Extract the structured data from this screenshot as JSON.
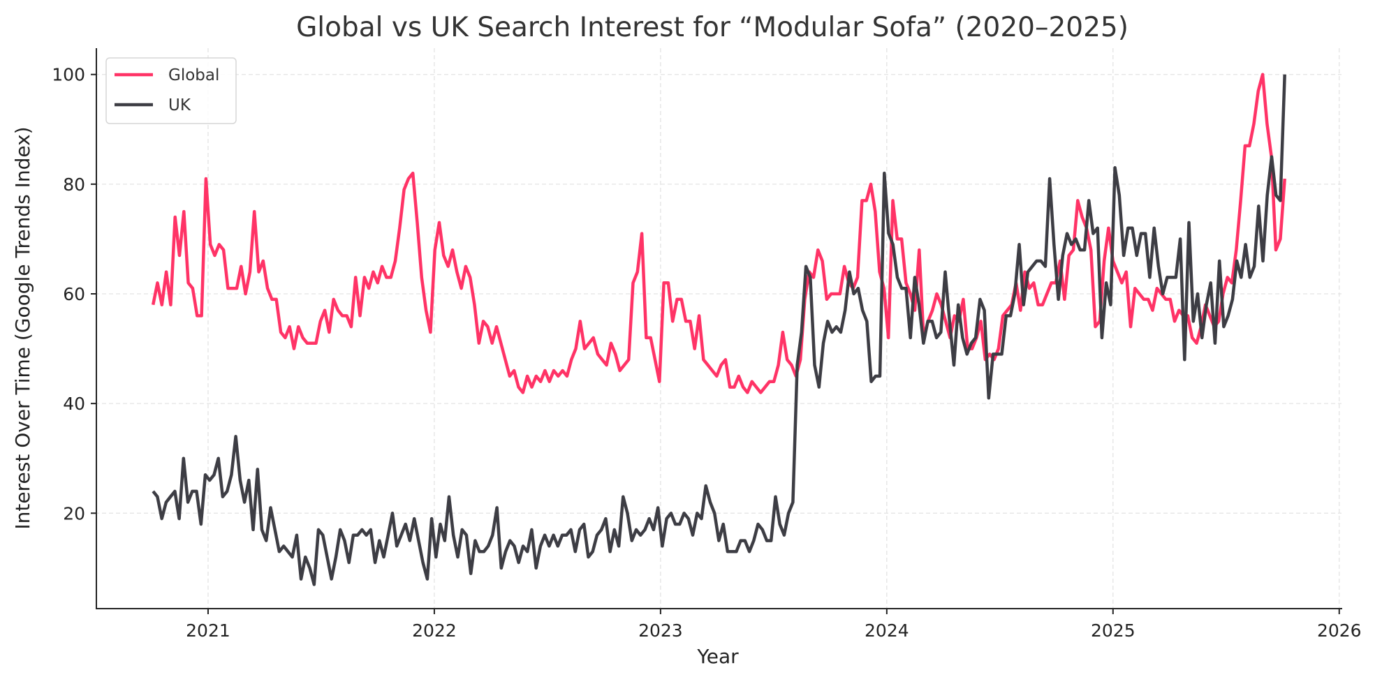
{
  "chart_data": {
    "type": "line",
    "title": "Global vs UK Search Interest for “Modular Sofa” (2020–2025)",
    "xlabel": "Year",
    "ylabel": "Interest Over Time (Google Trends Index)",
    "xlim": [
      2020.5,
      2026.01
    ],
    "ylim": [
      2.6,
      104.8
    ],
    "x_ticks": [
      "2021",
      "2022",
      "2023",
      "2024",
      "2025",
      "2026"
    ],
    "y_ticks": [
      "20",
      "40",
      "60",
      "80",
      "100"
    ],
    "grid": true,
    "legend_position": "top-left",
    "x_start": "2020-10-04",
    "x_end": "2025-10-05",
    "frequency": "weekly",
    "series": [
      {
        "name": "Global",
        "color": "#ff3366",
        "values": [
          58,
          62,
          58,
          64,
          58,
          74,
          67,
          75,
          62,
          61,
          56,
          56,
          81,
          69,
          67,
          69,
          68,
          61,
          61,
          61,
          65,
          60,
          64,
          75,
          64,
          66,
          61,
          59,
          59,
          53,
          52,
          54,
          50,
          54,
          52,
          51,
          51,
          51,
          55,
          57,
          53,
          59,
          57,
          56,
          56,
          54,
          63,
          56,
          63,
          61,
          64,
          62,
          65,
          63,
          63,
          66,
          72,
          79,
          81,
          82,
          73,
          63,
          57,
          53,
          68,
          73,
          67,
          65,
          68,
          64,
          61,
          65,
          63,
          58,
          51,
          55,
          54,
          51,
          54,
          51,
          48,
          45,
          46,
          43,
          42,
          45,
          43,
          45,
          44,
          46,
          44,
          46,
          45,
          46,
          45,
          48,
          50,
          55,
          50,
          51,
          52,
          49,
          48,
          47,
          51,
          49,
          46,
          47,
          48,
          62,
          64,
          71,
          52,
          52,
          48,
          44,
          62,
          62,
          55,
          59,
          59,
          55,
          55,
          50,
          56,
          48,
          47,
          46,
          45,
          47,
          48,
          43,
          43,
          45,
          43,
          42,
          44,
          43,
          42,
          43,
          44,
          44,
          47,
          53,
          48,
          47,
          45,
          48,
          59,
          64,
          63,
          68,
          66,
          59,
          60,
          60,
          60,
          65,
          62,
          61,
          63,
          77,
          77,
          80,
          75,
          64,
          61,
          52,
          77,
          70,
          70,
          62,
          60,
          57,
          68,
          52,
          55,
          57,
          60,
          58,
          55,
          52,
          56,
          55,
          59,
          50,
          50,
          52,
          55,
          48,
          49,
          48,
          50,
          56,
          57,
          58,
          62,
          57,
          64,
          61,
          62,
          58,
          58,
          60,
          62,
          62,
          66,
          59,
          67,
          68,
          77,
          74,
          72,
          68,
          54,
          55,
          66,
          72,
          66,
          64,
          62,
          64,
          54,
          61,
          60,
          59,
          59,
          57,
          61,
          60,
          59,
          59,
          55,
          57,
          56,
          56,
          52,
          51,
          54,
          58,
          56,
          54,
          55,
          60,
          63,
          62,
          68,
          77,
          87,
          87,
          91,
          97,
          100,
          91,
          85,
          68,
          70,
          81
        ]
      },
      {
        "name": "UK",
        "color": "#3d3d44",
        "values": [
          24,
          23,
          19,
          22,
          23,
          24,
          19,
          30,
          22,
          24,
          24,
          18,
          27,
          26,
          27,
          30,
          23,
          24,
          27,
          34,
          26,
          22,
          26,
          17,
          28,
          17,
          15,
          21,
          17,
          13,
          14,
          13,
          12,
          16,
          8,
          12,
          10,
          7,
          17,
          16,
          12,
          8,
          12,
          17,
          15,
          11,
          16,
          16,
          17,
          16,
          17,
          11,
          15,
          12,
          16,
          20,
          14,
          16,
          18,
          15,
          19,
          15,
          11,
          8,
          19,
          12,
          18,
          15,
          23,
          16,
          12,
          17,
          16,
          9,
          15,
          13,
          13,
          14,
          16,
          21,
          10,
          13,
          15,
          14,
          11,
          14,
          13,
          17,
          10,
          14,
          16,
          14,
          16,
          14,
          16,
          16,
          17,
          13,
          17,
          18,
          12,
          13,
          16,
          17,
          19,
          13,
          17,
          14,
          23,
          20,
          15,
          17,
          16,
          17,
          19,
          17,
          21,
          14,
          19,
          20,
          18,
          18,
          20,
          19,
          16,
          20,
          19,
          25,
          22,
          20,
          15,
          18,
          13,
          13,
          13,
          15,
          15,
          13,
          15,
          18,
          17,
          15,
          15,
          23,
          18,
          16,
          20,
          22,
          47,
          53,
          65,
          63,
          47,
          43,
          51,
          55,
          53,
          54,
          53,
          57,
          64,
          60,
          61,
          57,
          55,
          44,
          45,
          45,
          82,
          71,
          69,
          63,
          61,
          61,
          52,
          63,
          58,
          51,
          55,
          55,
          52,
          53,
          64,
          55,
          47,
          58,
          52,
          49,
          51,
          52,
          59,
          57,
          41,
          49,
          49,
          49,
          56,
          56,
          60,
          69,
          58,
          64,
          65,
          66,
          66,
          65,
          81,
          69,
          59,
          67,
          71,
          69,
          70,
          68,
          68,
          77,
          71,
          72,
          52,
          62,
          58,
          83,
          78,
          67,
          72,
          72,
          67,
          71,
          71,
          63,
          72,
          65,
          60,
          63,
          63,
          63,
          70,
          48,
          73,
          55,
          60,
          52,
          58,
          62,
          51,
          66,
          54,
          56,
          59,
          66,
          63,
          69,
          63,
          65,
          76,
          66,
          78,
          85,
          78,
          77,
          100
        ]
      }
    ]
  }
}
